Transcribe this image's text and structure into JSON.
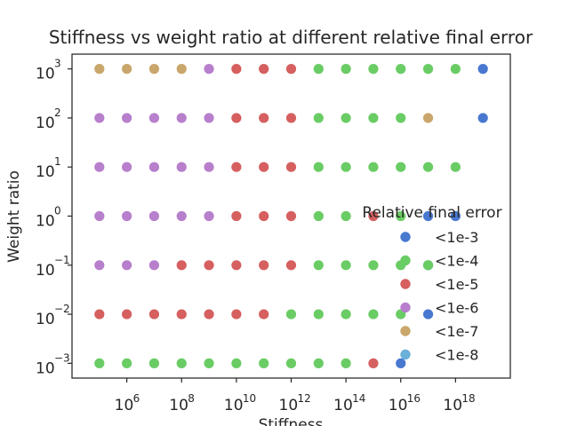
{
  "chart_data": {
    "type": "scatter",
    "title": "Stiffness vs weight ratio at different relative final error",
    "xlabel": "Stiffness",
    "ylabel": "Weight ratio",
    "xscale": "log",
    "yscale": "log",
    "xlim": [
      10000.0,
      1e+20
    ],
    "ylim": [
      0.0005,
      2000
    ],
    "x_ticks": [
      {
        "base": "10",
        "exp": "6",
        "value": 1000000.0
      },
      {
        "base": "10",
        "exp": "8",
        "value": 100000000.0
      },
      {
        "base": "10",
        "exp": "10",
        "value": 10000000000.0
      },
      {
        "base": "10",
        "exp": "12",
        "value": 1000000000000.0
      },
      {
        "base": "10",
        "exp": "14",
        "value": 100000000000000.0
      },
      {
        "base": "10",
        "exp": "16",
        "value": 1e+16
      },
      {
        "base": "10",
        "exp": "18",
        "value": 1e+18
      }
    ],
    "y_ticks": [
      {
        "base": "10",
        "exp": "−3",
        "value": 0.001
      },
      {
        "base": "10",
        "exp": "−2",
        "value": 0.01
      },
      {
        "base": "10",
        "exp": "−1",
        "value": 0.1
      },
      {
        "base": "10",
        "exp": "0",
        "value": 1
      },
      {
        "base": "10",
        "exp": "1",
        "value": 10
      },
      {
        "base": "10",
        "exp": "2",
        "value": 100
      },
      {
        "base": "10",
        "exp": "3",
        "value": 1000
      }
    ],
    "grid": false,
    "legend": {
      "title": "Relative final error",
      "placement": "right"
    },
    "series": [
      {
        "name": "<1e-3",
        "color": "#4878d0",
        "points": [
          [
            1e+19,
            1000
          ],
          [
            1e+19,
            100
          ],
          [
            1e+17,
            0.01
          ],
          [
            1e+16,
            0.001
          ],
          [
            1e+17,
            1
          ],
          [
            1e+18,
            1
          ],
          [
            1e+17,
            0.1
          ]
        ]
      },
      {
        "name": "<1e-4",
        "color": "#6acc64",
        "points": [
          [
            10000000000000.0,
            1000
          ],
          [
            100000000000000.0,
            1000
          ],
          [
            1000000000000000.0,
            1000
          ],
          [
            1e+16,
            1000
          ],
          [
            1e+17,
            1000
          ],
          [
            1e+18,
            1000
          ],
          [
            10000000000000.0,
            100
          ],
          [
            100000000000000.0,
            100
          ],
          [
            1000000000000000.0,
            100
          ],
          [
            1e+16,
            100
          ],
          [
            10000000000000.0,
            10
          ],
          [
            100000000000000.0,
            10
          ],
          [
            1000000000000000.0,
            10
          ],
          [
            1e+16,
            10
          ],
          [
            1e+17,
            10
          ],
          [
            1e+18,
            10
          ],
          [
            10000000000000.0,
            1
          ],
          [
            100000000000000.0,
            1
          ],
          [
            1e+16,
            1
          ],
          [
            10000000000000.0,
            0.1
          ],
          [
            100000000000000.0,
            0.1
          ],
          [
            1000000000000000.0,
            0.1
          ],
          [
            1e+16,
            0.1
          ],
          [
            1e+17,
            0.1
          ],
          [
            1000000000000.0,
            0.01
          ],
          [
            10000000000000.0,
            0.01
          ],
          [
            100000000000000.0,
            0.01
          ],
          [
            1000000000000000.0,
            0.01
          ],
          [
            1e+16,
            0.01
          ],
          [
            100000.0,
            0.001
          ],
          [
            1000000.0,
            0.001
          ],
          [
            10000000.0,
            0.001
          ],
          [
            100000000.0,
            0.001
          ],
          [
            1000000000.0,
            0.001
          ],
          [
            10000000000.0,
            0.001
          ],
          [
            100000000000.0,
            0.001
          ],
          [
            1000000000000.0,
            0.001
          ],
          [
            10000000000000.0,
            0.001
          ],
          [
            100000000000000.0,
            0.001
          ]
        ]
      },
      {
        "name": "<1e-5",
        "color": "#d65f5f",
        "points": [
          [
            10000000000.0,
            1000
          ],
          [
            100000000000.0,
            1000
          ],
          [
            1000000000000.0,
            1000
          ],
          [
            10000000000.0,
            100
          ],
          [
            100000000000.0,
            100
          ],
          [
            1000000000000.0,
            100
          ],
          [
            10000000000.0,
            10
          ],
          [
            100000000000.0,
            10
          ],
          [
            1000000000000.0,
            10
          ],
          [
            10000000000.0,
            1
          ],
          [
            100000000000.0,
            1
          ],
          [
            1000000000000.0,
            1
          ],
          [
            1000000000000000.0,
            1
          ],
          [
            100000000.0,
            0.1
          ],
          [
            1000000000.0,
            0.1
          ],
          [
            10000000000.0,
            0.1
          ],
          [
            100000000000.0,
            0.1
          ],
          [
            1000000000000.0,
            0.1
          ],
          [
            100000.0,
            0.01
          ],
          [
            1000000.0,
            0.01
          ],
          [
            10000000.0,
            0.01
          ],
          [
            100000000.0,
            0.01
          ],
          [
            1000000000.0,
            0.01
          ],
          [
            10000000000.0,
            0.01
          ],
          [
            100000000000.0,
            0.01
          ],
          [
            1000000000000000.0,
            0.001
          ]
        ]
      },
      {
        "name": "<1e-6",
        "color": "#b77fcc",
        "points": [
          [
            1000000000.0,
            1000
          ],
          [
            100000.0,
            100
          ],
          [
            1000000.0,
            100
          ],
          [
            10000000.0,
            100
          ],
          [
            100000000.0,
            100
          ],
          [
            1000000000.0,
            100
          ],
          [
            100000.0,
            10
          ],
          [
            1000000.0,
            10
          ],
          [
            10000000.0,
            10
          ],
          [
            100000000.0,
            10
          ],
          [
            1000000000.0,
            10
          ],
          [
            100000.0,
            1
          ],
          [
            1000000.0,
            1
          ],
          [
            10000000.0,
            1
          ],
          [
            100000000.0,
            1
          ],
          [
            1000000000.0,
            1
          ],
          [
            100000.0,
            0.1
          ],
          [
            1000000.0,
            0.1
          ],
          [
            10000000.0,
            0.1
          ]
        ]
      },
      {
        "name": "<1e-7",
        "color": "#c9a66b",
        "points": [
          [
            100000.0,
            1000
          ],
          [
            1000000.0,
            1000
          ],
          [
            10000000.0,
            1000
          ],
          [
            100000000.0,
            1000
          ],
          [
            1e+17,
            100
          ]
        ]
      },
      {
        "name": "<1e-8",
        "color": "#6ab0d8",
        "points": []
      }
    ]
  }
}
